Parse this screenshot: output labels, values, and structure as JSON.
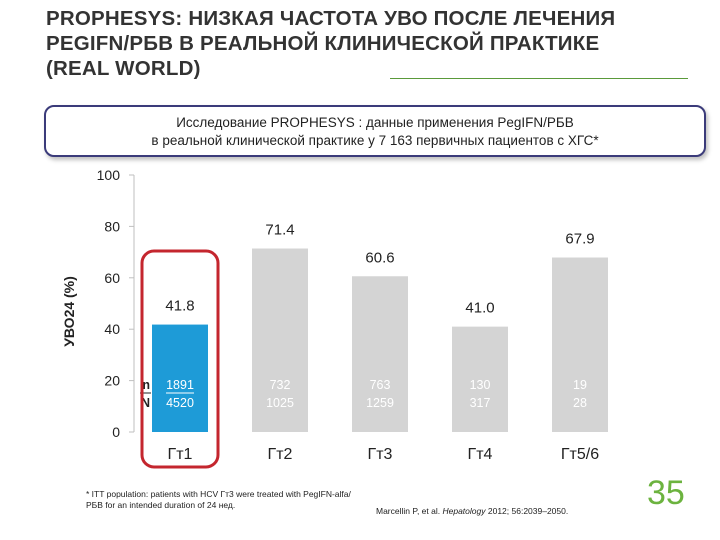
{
  "title": {
    "line1": "PROPHESYS: НИЗКАЯ ЧАСТОТА УВО ПОСЛЕ ЛЕЧЕНИЯ",
    "line2": "PEGIFN/РБВ В РЕАЛЬНОЙ КЛИНИЧЕСКОЙ ПРАКТИКЕ",
    "line3": "(REAL WORLD)"
  },
  "study_box": {
    "line1": "Исследование PROPHESYS : данные применения PegIFN/РБВ",
    "line2": "в реальной клинической практике  у 7 163 первичных пациентов с ХГС*"
  },
  "chart_data": {
    "type": "bar",
    "ylabel": "УВО24 (%)",
    "ylim": [
      0,
      100
    ],
    "yticks": [
      0,
      20,
      40,
      60,
      80,
      100
    ],
    "categories": [
      "Гт1",
      "Гт2",
      "Гт3",
      "Гт4",
      "Гт5/6"
    ],
    "values": [
      41.8,
      71.4,
      60.6,
      41.0,
      67.9
    ],
    "value_labels": [
      "41.8",
      "71.4",
      "60.6",
      "41.0",
      "67.9"
    ],
    "n_values": [
      "1891",
      "732",
      "763",
      "130",
      "19"
    ],
    "N_values": [
      "4520",
      "1025",
      "1259",
      "317",
      "28"
    ],
    "n_label": "n",
    "N_label": "N",
    "highlight_category": "Гт1",
    "colors": {
      "highlight_bar": "#1e9bd7",
      "other_bar": "#d4d4d4",
      "highlight_outline": "#c4262e"
    }
  },
  "footnote": {
    "left": "* ITT population: patients with HCV Гт3 were treated with PegIFN-alfa/РБВ for an intended duration of 24 нед.",
    "right_authors": "Marcellin P, et al.",
    "right_journal": "Hepatology",
    "right_ref": "2012; 56:2039–2050."
  },
  "page_number": "35"
}
